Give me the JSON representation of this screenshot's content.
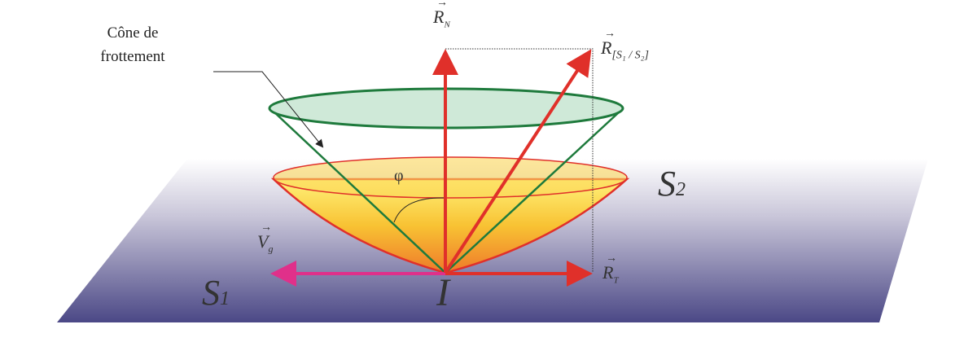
{
  "labels": {
    "cone_line1": "Cône de",
    "cone_line2": "frottement",
    "normal_force": "R",
    "normal_sub": "N",
    "resultant": "R",
    "resultant_sub": "[S₁ / S₂]",
    "tangential": "R",
    "tangential_sub": "T",
    "velocity": "V",
    "velocity_sub": "g",
    "angle": "φ",
    "solid1": "S",
    "solid1_sub": "1",
    "solid2": "S",
    "solid2_sub": "2",
    "point": "I"
  },
  "colors": {
    "force": "#e0302a",
    "velocity": "#e0308a",
    "cone": "#1e7a3c",
    "plane_bottom": "#4b4886",
    "cone_fill": "#cfe9d8"
  }
}
